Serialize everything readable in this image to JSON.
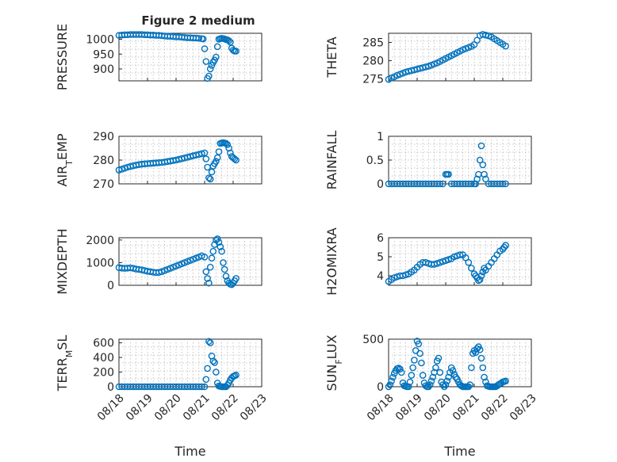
{
  "figure": {
    "title": "Figure 2 medium"
  },
  "colors": {
    "marker": "#0072BD"
  },
  "chart_data": [
    {
      "type": "scatter",
      "panel": 1,
      "ylabel": "PRESSURE",
      "title": "Figure 2 medium",
      "xlim": [
        0,
        5
      ],
      "ylim": [
        860,
        1020
      ],
      "yticks": [
        900,
        950,
        1000
      ],
      "xticklabels": [],
      "x": [
        0,
        0.1,
        0.2,
        0.3,
        0.4,
        0.5,
        0.6,
        0.7,
        0.8,
        0.9,
        1.0,
        1.1,
        1.2,
        1.3,
        1.4,
        1.5,
        1.6,
        1.7,
        1.8,
        1.9,
        2.0,
        2.1,
        2.2,
        2.3,
        2.4,
        2.5,
        2.6,
        2.7,
        2.8,
        2.9,
        2.95,
        3.0,
        3.05,
        3.1,
        3.15,
        3.2,
        3.25,
        3.3,
        3.35,
        3.4,
        3.45,
        3.5,
        3.55,
        3.6,
        3.65,
        3.7,
        3.75,
        3.8,
        3.85,
        3.9,
        3.95,
        4.0,
        4.05,
        4.1
      ],
      "y": [
        1013,
        1014,
        1015,
        1015,
        1016,
        1016,
        1016,
        1016,
        1016,
        1015,
        1015,
        1014,
        1014,
        1013,
        1013,
        1012,
        1011,
        1010,
        1010,
        1009,
        1008,
        1008,
        1007,
        1006,
        1005,
        1005,
        1004,
        1004,
        1003,
        1002,
        1001,
        968,
        925,
        868,
        876,
        900,
        912,
        922,
        930,
        940,
        975,
        1000,
        1002,
        1003,
        1002,
        1001,
        999,
        998,
        995,
        990,
        970,
        963,
        960,
        960
      ]
    },
    {
      "type": "scatter",
      "panel": 2,
      "ylabel": "THETA",
      "xlim": [
        0,
        5
      ],
      "ylim": [
        274.5,
        287.5
      ],
      "yticks": [
        275,
        280,
        285
      ],
      "xticklabels": [],
      "x": [
        0,
        0.1,
        0.2,
        0.3,
        0.4,
        0.5,
        0.6,
        0.7,
        0.8,
        0.9,
        1.0,
        1.1,
        1.2,
        1.3,
        1.4,
        1.5,
        1.6,
        1.7,
        1.8,
        1.9,
        2.0,
        2.1,
        2.2,
        2.3,
        2.4,
        2.5,
        2.6,
        2.7,
        2.8,
        2.9,
        3.0,
        3.1,
        3.2,
        3.3,
        3.4,
        3.5,
        3.6,
        3.7,
        3.8,
        3.9,
        4.0,
        4.1
      ],
      "y": [
        274.9,
        275.3,
        275.6,
        276.0,
        276.3,
        276.6,
        276.9,
        277.1,
        277.3,
        277.5,
        277.7,
        277.9,
        278.1,
        278.3,
        278.5,
        278.8,
        279.1,
        279.4,
        279.8,
        280.2,
        280.6,
        281.0,
        281.4,
        281.8,
        282.2,
        282.6,
        283.0,
        283.3,
        283.6,
        283.9,
        284.4,
        285.6,
        286.9,
        287.2,
        287.0,
        286.8,
        286.5,
        286.0,
        285.5,
        285.0,
        284.5,
        284.0
      ]
    },
    {
      "type": "scatter",
      "panel": 3,
      "ylabel": "AIR_TEMP",
      "xlim": [
        0,
        5
      ],
      "ylim": [
        270,
        290
      ],
      "yticks": [
        270,
        280,
        290
      ],
      "xticklabels": [],
      "x": [
        0,
        0.1,
        0.2,
        0.3,
        0.4,
        0.5,
        0.6,
        0.7,
        0.8,
        0.9,
        1.0,
        1.1,
        1.2,
        1.3,
        1.4,
        1.5,
        1.6,
        1.7,
        1.8,
        1.9,
        2.0,
        2.1,
        2.2,
        2.3,
        2.4,
        2.5,
        2.6,
        2.7,
        2.8,
        2.9,
        3.0,
        3.05,
        3.1,
        3.15,
        3.2,
        3.25,
        3.3,
        3.35,
        3.4,
        3.45,
        3.5,
        3.55,
        3.6,
        3.65,
        3.7,
        3.75,
        3.8,
        3.85,
        3.9,
        3.95,
        4.0,
        4.05,
        4.1
      ],
      "y": [
        275.8,
        276.2,
        276.6,
        277.0,
        277.3,
        277.6,
        277.9,
        278.1,
        278.3,
        278.4,
        278.5,
        278.6,
        278.7,
        278.8,
        278.9,
        279.0,
        279.2,
        279.4,
        279.6,
        279.8,
        280.0,
        280.3,
        280.6,
        280.9,
        281.2,
        281.5,
        281.8,
        282.1,
        282.4,
        282.7,
        283.0,
        280.5,
        277.0,
        272.5,
        272.0,
        275.0,
        277.5,
        278.5,
        279.5,
        281.0,
        283.5,
        287.0,
        287.2,
        287.3,
        287.2,
        287.0,
        286.5,
        285.0,
        283.0,
        281.5,
        281.0,
        280.5,
        280.0
      ]
    },
    {
      "type": "scatter",
      "panel": 4,
      "ylabel": "RAINFALL",
      "xlim": [
        0,
        5
      ],
      "ylim": [
        0,
        1
      ],
      "yticks": [
        0,
        0.5,
        1
      ],
      "xticklabels": [],
      "x": [
        0,
        0.1,
        0.2,
        0.3,
        0.4,
        0.5,
        0.6,
        0.7,
        0.8,
        0.9,
        1.0,
        1.1,
        1.2,
        1.3,
        1.4,
        1.5,
        1.6,
        1.7,
        1.8,
        1.9,
        2.0,
        2.05,
        2.1,
        2.2,
        2.3,
        2.4,
        2.5,
        2.6,
        2.7,
        2.8,
        2.9,
        3.0,
        3.05,
        3.1,
        3.15,
        3.2,
        3.25,
        3.3,
        3.35,
        3.4,
        3.5,
        3.6,
        3.7,
        3.8,
        3.9,
        4.0,
        4.1
      ],
      "y": [
        0,
        0,
        0,
        0,
        0,
        0,
        0,
        0,
        0,
        0,
        0,
        0,
        0,
        0,
        0,
        0,
        0,
        0,
        0,
        0,
        0.2,
        0.2,
        0.2,
        0,
        0,
        0,
        0,
        0,
        0,
        0,
        0,
        0,
        0,
        0.1,
        0.2,
        0.5,
        0.8,
        0.4,
        0.2,
        0.1,
        0,
        0,
        0,
        0,
        0,
        0,
        0
      ]
    },
    {
      "type": "scatter",
      "panel": 5,
      "ylabel": "MIXDEPTH",
      "xlim": [
        0,
        5
      ],
      "ylim": [
        0,
        2100
      ],
      "yticks": [
        0,
        1000,
        2000
      ],
      "xticklabels": [],
      "x": [
        0,
        0.1,
        0.2,
        0.3,
        0.4,
        0.5,
        0.6,
        0.7,
        0.8,
        0.9,
        1.0,
        1.1,
        1.2,
        1.3,
        1.4,
        1.5,
        1.6,
        1.7,
        1.8,
        1.9,
        2.0,
        2.1,
        2.2,
        2.3,
        2.4,
        2.5,
        2.6,
        2.7,
        2.8,
        2.9,
        3.0,
        3.05,
        3.1,
        3.15,
        3.2,
        3.25,
        3.3,
        3.35,
        3.4,
        3.45,
        3.5,
        3.55,
        3.6,
        3.65,
        3.7,
        3.75,
        3.8,
        3.85,
        3.9,
        3.95,
        4.0,
        4.05,
        4.1
      ],
      "y": [
        780,
        760,
        750,
        760,
        770,
        750,
        720,
        700,
        680,
        650,
        620,
        600,
        580,
        560,
        570,
        600,
        650,
        700,
        750,
        800,
        850,
        900,
        950,
        1000,
        1050,
        1100,
        1150,
        1200,
        1250,
        1300,
        1250,
        600,
        300,
        100,
        800,
        1200,
        1500,
        1800,
        2000,
        2050,
        1900,
        1700,
        1500,
        1000,
        700,
        400,
        200,
        100,
        50,
        30,
        100,
        200,
        300
      ]
    },
    {
      "type": "scatter",
      "panel": 6,
      "ylabel": "H2OMIXRA",
      "xlim": [
        0,
        5
      ],
      "ylim": [
        3.5,
        6
      ],
      "yticks": [
        4,
        5,
        6
      ],
      "xticklabels": [],
      "x": [
        0,
        0.1,
        0.2,
        0.3,
        0.4,
        0.5,
        0.6,
        0.7,
        0.8,
        0.9,
        1.0,
        1.1,
        1.2,
        1.3,
        1.4,
        1.5,
        1.6,
        1.7,
        1.8,
        1.9,
        2.0,
        2.1,
        2.2,
        2.3,
        2.4,
        2.5,
        2.6,
        2.7,
        2.8,
        2.9,
        3.0,
        3.05,
        3.1,
        3.15,
        3.2,
        3.25,
        3.3,
        3.35,
        3.4,
        3.5,
        3.6,
        3.7,
        3.8,
        3.9,
        4.0,
        4.05,
        4.1
      ],
      "y": [
        3.7,
        3.8,
        3.9,
        3.95,
        4.0,
        4.0,
        4.05,
        4.1,
        4.2,
        4.3,
        4.45,
        4.6,
        4.7,
        4.7,
        4.65,
        4.6,
        4.6,
        4.65,
        4.7,
        4.75,
        4.8,
        4.85,
        4.9,
        5.0,
        5.05,
        5.1,
        5.1,
        4.95,
        4.7,
        4.4,
        4.1,
        4.0,
        3.9,
        3.75,
        3.8,
        4.0,
        4.2,
        4.4,
        4.3,
        4.5,
        4.7,
        4.9,
        5.1,
        5.3,
        5.4,
        5.5,
        5.6
      ]
    },
    {
      "type": "scatter",
      "panel": 7,
      "ylabel": "TERR_MSL",
      "xlabel": "Time",
      "xlim": [
        0,
        5
      ],
      "ylim": [
        0,
        650
      ],
      "yticks": [
        0,
        200,
        400,
        600
      ],
      "xticklabels": [
        "08/18",
        "08/19",
        "08/20",
        "08/21",
        "08/22",
        "08/23"
      ],
      "x": [
        0,
        0.1,
        0.2,
        0.3,
        0.4,
        0.5,
        0.6,
        0.7,
        0.8,
        0.9,
        1.0,
        1.1,
        1.2,
        1.3,
        1.4,
        1.5,
        1.6,
        1.7,
        1.8,
        1.9,
        2.0,
        2.1,
        2.2,
        2.3,
        2.4,
        2.5,
        2.6,
        2.7,
        2.8,
        2.9,
        3.0,
        3.05,
        3.1,
        3.15,
        3.2,
        3.25,
        3.3,
        3.35,
        3.4,
        3.45,
        3.5,
        3.55,
        3.6,
        3.65,
        3.7,
        3.75,
        3.8,
        3.85,
        3.9,
        3.95,
        4.0,
        4.05,
        4.1
      ],
      "y": [
        0,
        0,
        0,
        0,
        0,
        0,
        0,
        0,
        0,
        0,
        0,
        0,
        0,
        0,
        0,
        0,
        0,
        0,
        0,
        0,
        0,
        0,
        0,
        0,
        0,
        0,
        0,
        0,
        0,
        0,
        0,
        100,
        250,
        620,
        600,
        420,
        350,
        330,
        200,
        50,
        10,
        5,
        0,
        0,
        0,
        0,
        20,
        50,
        90,
        120,
        140,
        150,
        160
      ]
    },
    {
      "type": "scatter",
      "panel": 8,
      "ylabel": "SUN_FLUX",
      "xlabel": "Time",
      "xlim": [
        0,
        5
      ],
      "ylim": [
        0,
        500
      ],
      "yticks": [
        0,
        500
      ],
      "xticklabels": [
        "08/18",
        "08/19",
        "08/20",
        "08/21",
        "08/22",
        "08/23"
      ],
      "x": [
        0,
        0.05,
        0.1,
        0.15,
        0.2,
        0.25,
        0.3,
        0.35,
        0.4,
        0.45,
        0.5,
        0.55,
        0.6,
        0.65,
        0.7,
        0.75,
        0.8,
        0.85,
        0.9,
        0.95,
        1.0,
        1.05,
        1.1,
        1.15,
        1.2,
        1.25,
        1.3,
        1.35,
        1.4,
        1.45,
        1.5,
        1.55,
        1.6,
        1.65,
        1.7,
        1.75,
        1.8,
        1.85,
        1.9,
        1.95,
        2.0,
        2.05,
        2.1,
        2.15,
        2.2,
        2.25,
        2.3,
        2.35,
        2.4,
        2.45,
        2.5,
        2.55,
        2.6,
        2.65,
        2.7,
        2.75,
        2.8,
        2.85,
        2.9,
        2.95,
        3.0,
        3.05,
        3.1,
        3.15,
        3.2,
        3.25,
        3.3,
        3.35,
        3.4,
        3.45,
        3.5,
        3.55,
        3.6,
        3.65,
        3.7,
        3.75,
        3.8,
        3.85,
        3.9,
        3.95,
        4.0,
        4.05,
        4.1
      ],
      "y": [
        0,
        20,
        60,
        100,
        140,
        170,
        190,
        195,
        185,
        150,
        40,
        10,
        5,
        0,
        0,
        50,
        120,
        200,
        280,
        380,
        480,
        450,
        350,
        250,
        120,
        40,
        10,
        0,
        0,
        20,
        60,
        100,
        150,
        200,
        270,
        300,
        150,
        50,
        20,
        0,
        20,
        60,
        100,
        150,
        200,
        170,
        130,
        100,
        80,
        50,
        20,
        10,
        0,
        0,
        0,
        0,
        0,
        20,
        200,
        350,
        380,
        360,
        400,
        420,
        390,
        300,
        200,
        100,
        50,
        10,
        5,
        0,
        0,
        0,
        0,
        0,
        10,
        20,
        30,
        40,
        50,
        55,
        60
      ]
    }
  ]
}
